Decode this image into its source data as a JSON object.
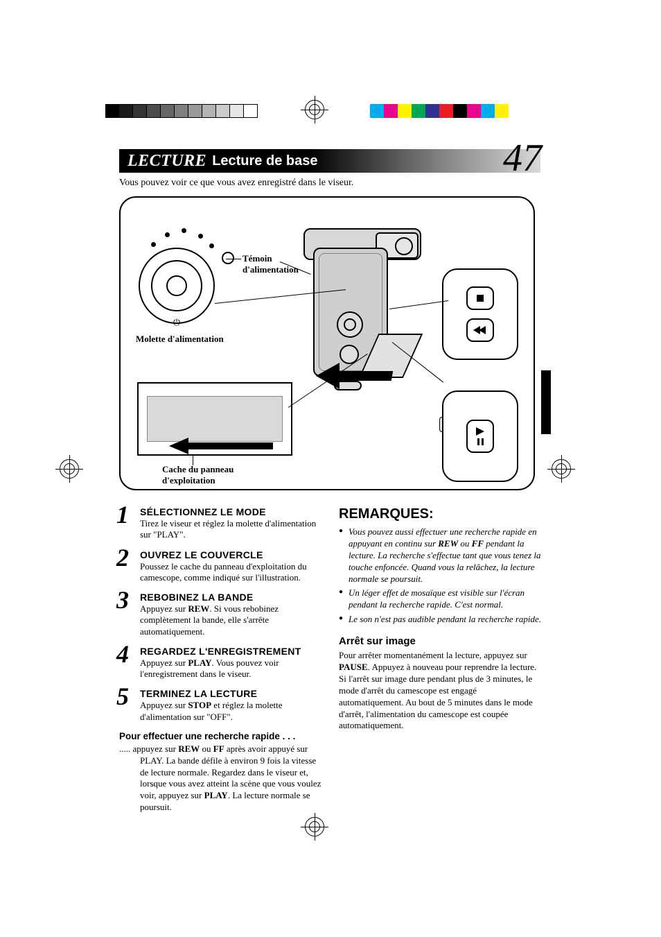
{
  "printerMarks": {
    "grayBarShades": [
      "#000000",
      "#1a1a1a",
      "#333333",
      "#4d4d4d",
      "#666666",
      "#808080",
      "#999999",
      "#b3b3b3",
      "#cccccc",
      "#e6e6e6",
      "#ffffff"
    ],
    "cmykBarColors": [
      "#00aeef",
      "#ec008c",
      "#fff200",
      "#00a651",
      "#2e3192",
      "#ed1c24",
      "#000000",
      "#ec008c",
      "#00aeef",
      "#fff200"
    ]
  },
  "header": {
    "section": "LECTURE",
    "subtitle": "Lecture de base",
    "pageNumber": "47"
  },
  "intro": "Vous pouvez voir ce que vous avez enregistré dans le viseur.",
  "diagram": {
    "labels": {
      "powerIndicator": "Témoin d'alimentation",
      "powerDial": "Molette d'alimentation",
      "panelCover": "Cache du panneau d'exploitation",
      "dialPlay": "⏻"
    }
  },
  "steps": [
    {
      "n": "1",
      "title": "SÉLECTIONNEZ LE MODE",
      "body": "Tirez le viseur et réglez la molette d'alimentation sur \"PLAY\"."
    },
    {
      "n": "2",
      "title": "OUVREZ LE COUVERCLE",
      "body": "Poussez le cache du panneau d'exploitation du camescope, comme indiqué sur l'illustration."
    },
    {
      "n": "3",
      "title": "REBOBINEZ LA BANDE",
      "body_pre": "Appuyez sur ",
      "body_bold": "REW",
      "body_post": ". Si vous rebobinez complètement la bande, elle s'arrête automatiquement."
    },
    {
      "n": "4",
      "title": "REGARDEZ L'ENREGISTREMENT",
      "body_pre": "Appuyez sur ",
      "body_bold": "PLAY",
      "body_post": ". Vous pouvez voir l'enregistrement dans le viseur."
    },
    {
      "n": "5",
      "title": "TERMINEZ LA LECTURE",
      "body_pre": "Appuyez sur ",
      "body_bold": "STOP",
      "body_post": " et réglez la molette d'alimentation sur \"OFF\"."
    }
  ],
  "searchHeading": "Pour effectuer une recherche rapide . . .",
  "searchBody": {
    "lead": "..... appuyez sur ",
    "b1": "REW",
    "mid1": " ou ",
    "b2": "FF",
    "mid2": " après avoir appuyé sur PLAY. La bande défile à environ 9 fois la vitesse de lecture normale. Regardez dans le viseur et, lorsque vous avez atteint la scène que vous voulez voir, appuyez sur ",
    "b3": "PLAY",
    "tail": ". La lecture normale se poursuit."
  },
  "remarks": {
    "heading": "REMARQUES:",
    "items": [
      {
        "pre": "Vous pouvez aussi effectuer une recherche rapide en appuyant en continu sur ",
        "b1": "REW",
        "mid": " ou ",
        "b2": "FF",
        "post": " pendant la lecture. La recherche s'effectue tant que vous tenez la touche enfoncée. Quand vous la relâchez, la lecture normale se poursuit."
      },
      {
        "text": "Un léger effet de mosaïque est visible sur l'écran pendant la recherche rapide. C'est normal."
      },
      {
        "text": "Le son n'est pas audible pendant la recherche rapide."
      }
    ]
  },
  "still": {
    "heading": "Arrêt sur image",
    "pre": "Pour arrêter momentanément la lecture, appuyez sur ",
    "b": "PAUSE",
    "post": ". Appuyez à nouveau pour reprendre la lecture. Si l'arrêt sur image dure pendant plus de 3 minutes, le mode d'arrêt du camescope est engagé automatiquement. Au bout de 5 minutes dans le mode d'arrêt, l'alimentation du camescope est coupée automatiquement."
  }
}
